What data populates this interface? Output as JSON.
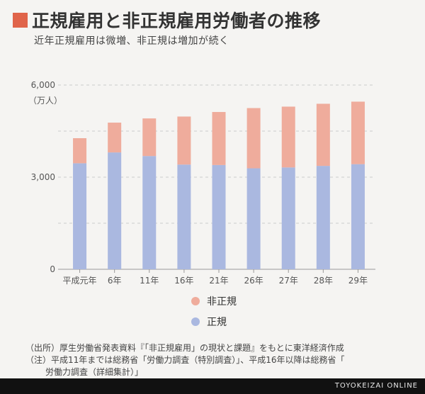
{
  "title": "正規雇用と非正規雇用労働者の推移",
  "subtitle": "近年正規雇用は微増、非正規は増加が続く",
  "unit_label": "（万人）",
  "colors": {
    "accent": "#e0644a",
    "regular": "#aab8e0",
    "non_regular": "#efac9c",
    "axis": "#999999",
    "grid": "#cccccc",
    "footer_bg": "#111111"
  },
  "legend": {
    "non_regular": "非正規",
    "regular": "正規"
  },
  "notes": {
    "source": "（出所）厚生労働省発表資料『「非正規雇用」の現状と課題』をもとに東洋経済作成",
    "note_1": "（注）平成11年までは総務省「労働力調査（特別調査）」、平成16年以降は総務省「",
    "note_2": "労働力調査（詳細集計）」"
  },
  "footer": "TOYOKEIZAI ONLINE",
  "chart_data": {
    "type": "bar",
    "stacked": true,
    "categories": [
      "平成元年",
      "6年",
      "11年",
      "16年",
      "21年",
      "26年",
      "27年",
      "28年",
      "29年"
    ],
    "series": [
      {
        "name": "正規",
        "values": [
          3452,
          3805,
          3688,
          3410,
          3395,
          3288,
          3317,
          3367,
          3423
        ]
      },
      {
        "name": "非正規",
        "values": [
          817,
          971,
          1225,
          1564,
          1727,
          1962,
          1980,
          2023,
          2036
        ]
      }
    ],
    "y_ticks": [
      0,
      3000,
      6000
    ],
    "y_tick_labels": [
      "0",
      "3,000",
      "6,000"
    ],
    "ylim": [
      0,
      6000
    ],
    "grid": true
  }
}
